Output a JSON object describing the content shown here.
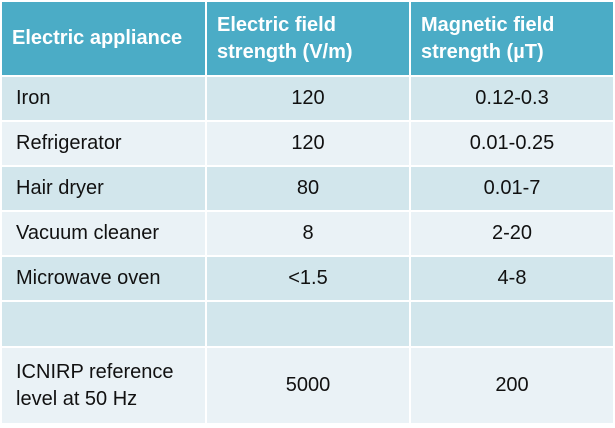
{
  "table": {
    "headers": [
      "Electric appliance",
      "Electric field strength (V/m)",
      "Magnetic field strength (µT)"
    ],
    "rows": [
      {
        "appliance": "Iron",
        "electric": "120",
        "magnetic": "0.12-0.3"
      },
      {
        "appliance": "Refrigerator",
        "electric": "120",
        "magnetic": "0.01-0.25"
      },
      {
        "appliance": "Hair dryer",
        "electric": "80",
        "magnetic": "0.01-7"
      },
      {
        "appliance": "Vacuum cleaner",
        "electric": "8",
        "magnetic": "2-20"
      },
      {
        "appliance": "Microwave oven",
        "electric": "<1.5",
        "magnetic": "4-8"
      }
    ],
    "blank_row": {
      "appliance": "",
      "electric": "",
      "magnetic": ""
    },
    "reference": {
      "appliance": "ICNIRP reference level at 50 Hz",
      "electric": "5000",
      "magnetic": "200"
    },
    "colors": {
      "header": "#4bacc6",
      "row_dark": "#d2e6ec",
      "row_light": "#eaf2f6",
      "header_text": "#ffffff",
      "body_text": "#111111"
    }
  }
}
